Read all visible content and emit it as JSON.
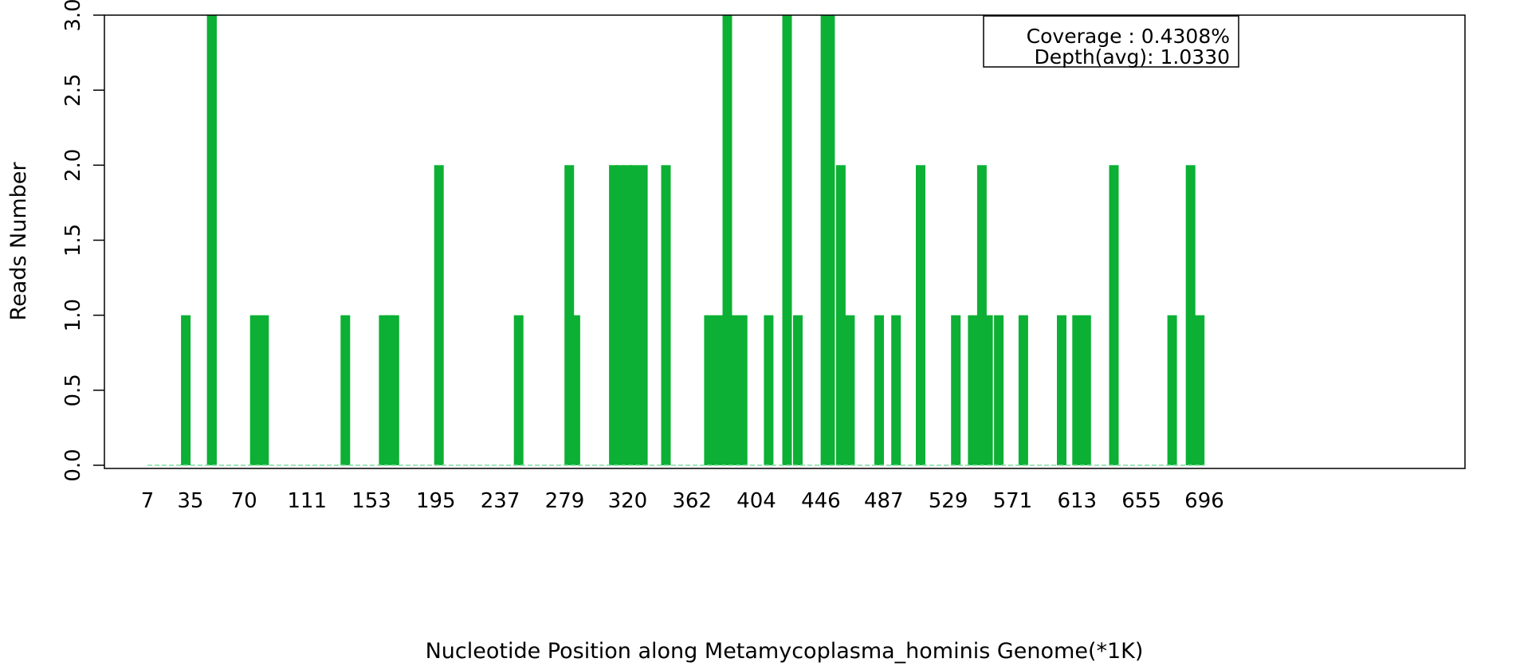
{
  "chart_data": {
    "type": "bar",
    "title": "",
    "xlabel": "Nucleotide Position along Metamycoplasma_hominis Genome(*1K)",
    "ylabel": "Reads Number",
    "xlim": [
      7,
      696
    ],
    "ylim": [
      0,
      3
    ],
    "x_ticks": [
      7,
      35,
      70,
      111,
      153,
      195,
      237,
      279,
      320,
      362,
      404,
      446,
      487,
      529,
      571,
      613,
      655,
      696
    ],
    "y_ticks": [
      "0.0",
      "0.5",
      "1.0",
      "1.5",
      "2.0",
      "2.5",
      "3.0"
    ],
    "grid": false,
    "colors": {
      "bar": "#0cb034",
      "baseline": "#7fe0a0"
    },
    "legend": {
      "placement": "top-right",
      "lines": [
        "Coverage : 0.4308%",
        "Depth(avg): 1.0330"
      ]
    },
    "x": [
      32,
      49,
      49,
      49,
      77,
      83,
      136,
      161,
      165,
      168,
      197,
      249,
      282,
      286,
      311,
      315,
      320,
      324,
      330,
      345,
      373,
      379,
      385,
      389,
      395,
      412,
      424,
      431,
      449,
      452,
      459,
      465,
      484,
      495,
      511,
      534,
      545,
      551,
      555,
      562,
      578,
      603,
      613,
      619,
      637,
      675,
      687,
      693
    ],
    "values": [
      1,
      3,
      3,
      3,
      1,
      1,
      1,
      1,
      1,
      1,
      2,
      1,
      2,
      1,
      2,
      2,
      2,
      2,
      2,
      2,
      1,
      1,
      3,
      1,
      1,
      1,
      3,
      1,
      3,
      3,
      2,
      1,
      1,
      1,
      2,
      1,
      1,
      2,
      1,
      1,
      1,
      1,
      1,
      1,
      2,
      1,
      2,
      1
    ]
  }
}
